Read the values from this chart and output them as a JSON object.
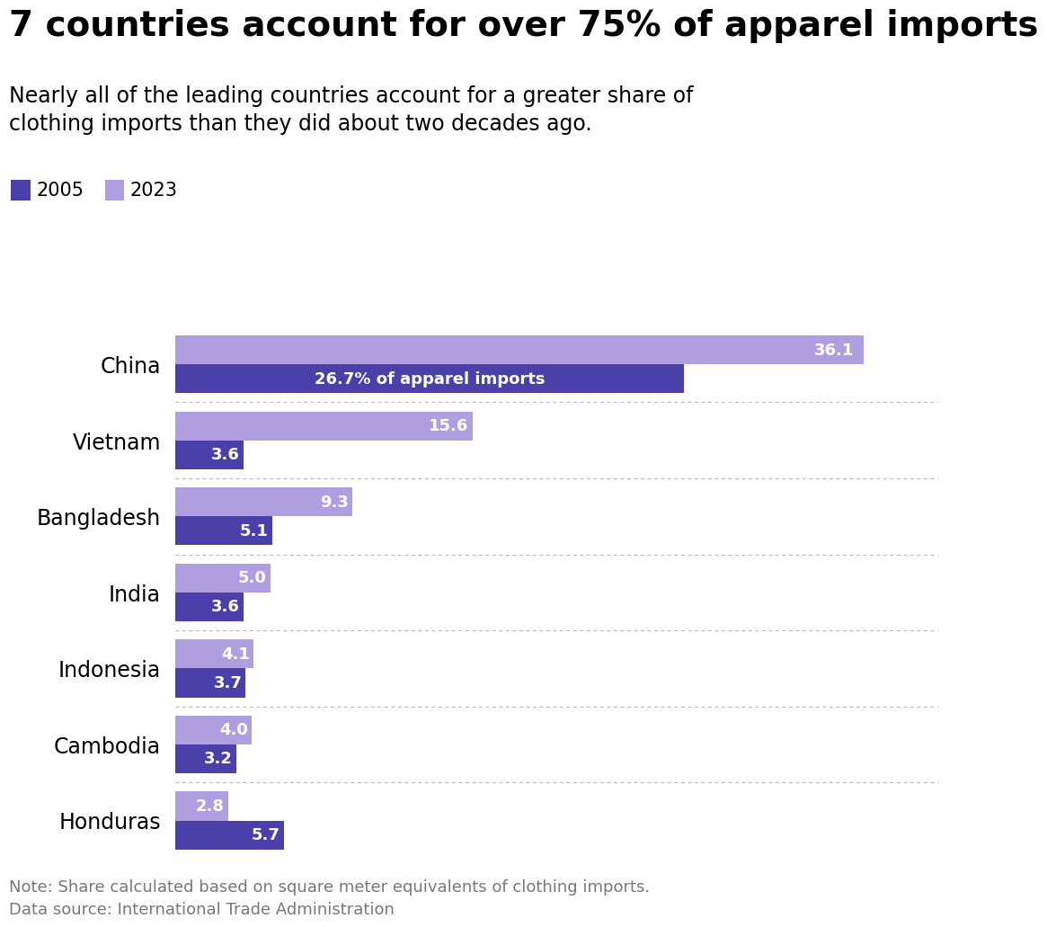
{
  "title": "7 countries account for over 75% of apparel imports",
  "subtitle": "Nearly all of the leading countries account for a greater share of\nclothing imports than they did about two decades ago.",
  "countries": [
    "China",
    "Vietnam",
    "Bangladesh",
    "India",
    "Indonesia",
    "Cambodia",
    "Honduras"
  ],
  "values_2005": [
    26.7,
    3.6,
    5.1,
    3.6,
    3.7,
    3.2,
    5.7
  ],
  "values_2023": [
    36.1,
    15.6,
    9.3,
    5.0,
    4.1,
    4.0,
    2.8
  ],
  "color_2005": "#4b3faa",
  "color_2023": "#b09fe0",
  "bar_height": 0.38,
  "label_2005": "2005",
  "label_2023": "2023",
  "china_annotation": "26.7% of apparel imports",
  "note": "Note: Share calculated based on square meter equivalents of clothing imports.",
  "source": "Data source: International Trade Administration",
  "background_color": "#ffffff",
  "title_color": "#000000",
  "subtitle_color": "#000000",
  "note_color": "#777777",
  "xlim": [
    0,
    40
  ],
  "label_fontsize": 13,
  "country_fontsize": 17,
  "title_fontsize": 28,
  "subtitle_fontsize": 17,
  "legend_fontsize": 15,
  "note_fontsize": 13
}
